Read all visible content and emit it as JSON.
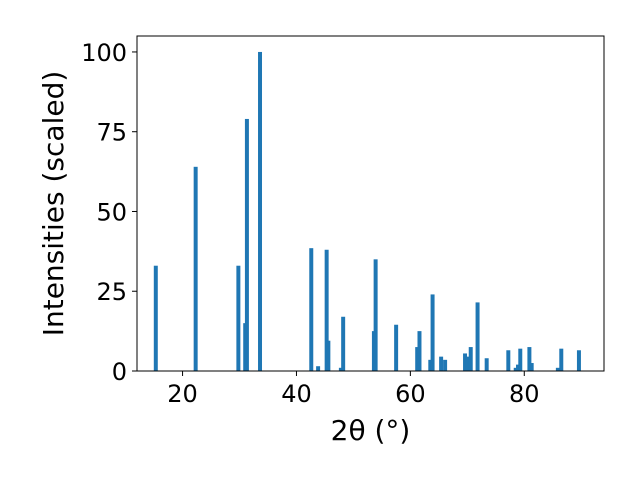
{
  "chart_data": {
    "type": "bar",
    "xlabel": "2θ (°)",
    "ylabel": "Intensities (scaled)",
    "xlim": [
      12,
      94
    ],
    "ylim": [
      0,
      105
    ],
    "xticks": [
      20,
      40,
      60,
      80
    ],
    "yticks": [
      0,
      25,
      50,
      75,
      100
    ],
    "bar_color": "#1f77b4",
    "bar_width": 0.7,
    "grid": false,
    "series": [
      {
        "x": [
          15.3,
          22.3,
          29.8,
          31.0,
          31.3,
          33.6,
          42.6,
          43.8,
          45.3,
          45.6,
          47.8,
          48.2,
          53.6,
          53.9,
          57.5,
          61.2,
          61.6,
          63.5,
          63.9,
          65.4,
          66.1,
          69.6,
          70.1,
          70.6,
          71.8,
          73.4,
          77.2,
          78.5,
          78.9,
          79.3,
          80.9,
          81.3,
          85.9,
          86.5,
          89.6
        ],
        "y": [
          33,
          64,
          33,
          15,
          79,
          100,
          38.5,
          1.5,
          38,
          9.5,
          1,
          17,
          12.5,
          35,
          14.5,
          7.5,
          12.5,
          3.5,
          24,
          4.5,
          3.5,
          5.5,
          4.5,
          7.5,
          21.5,
          4,
          6.5,
          1,
          2,
          7,
          7.5,
          2.5,
          1,
          7,
          6.5
        ]
      }
    ]
  }
}
